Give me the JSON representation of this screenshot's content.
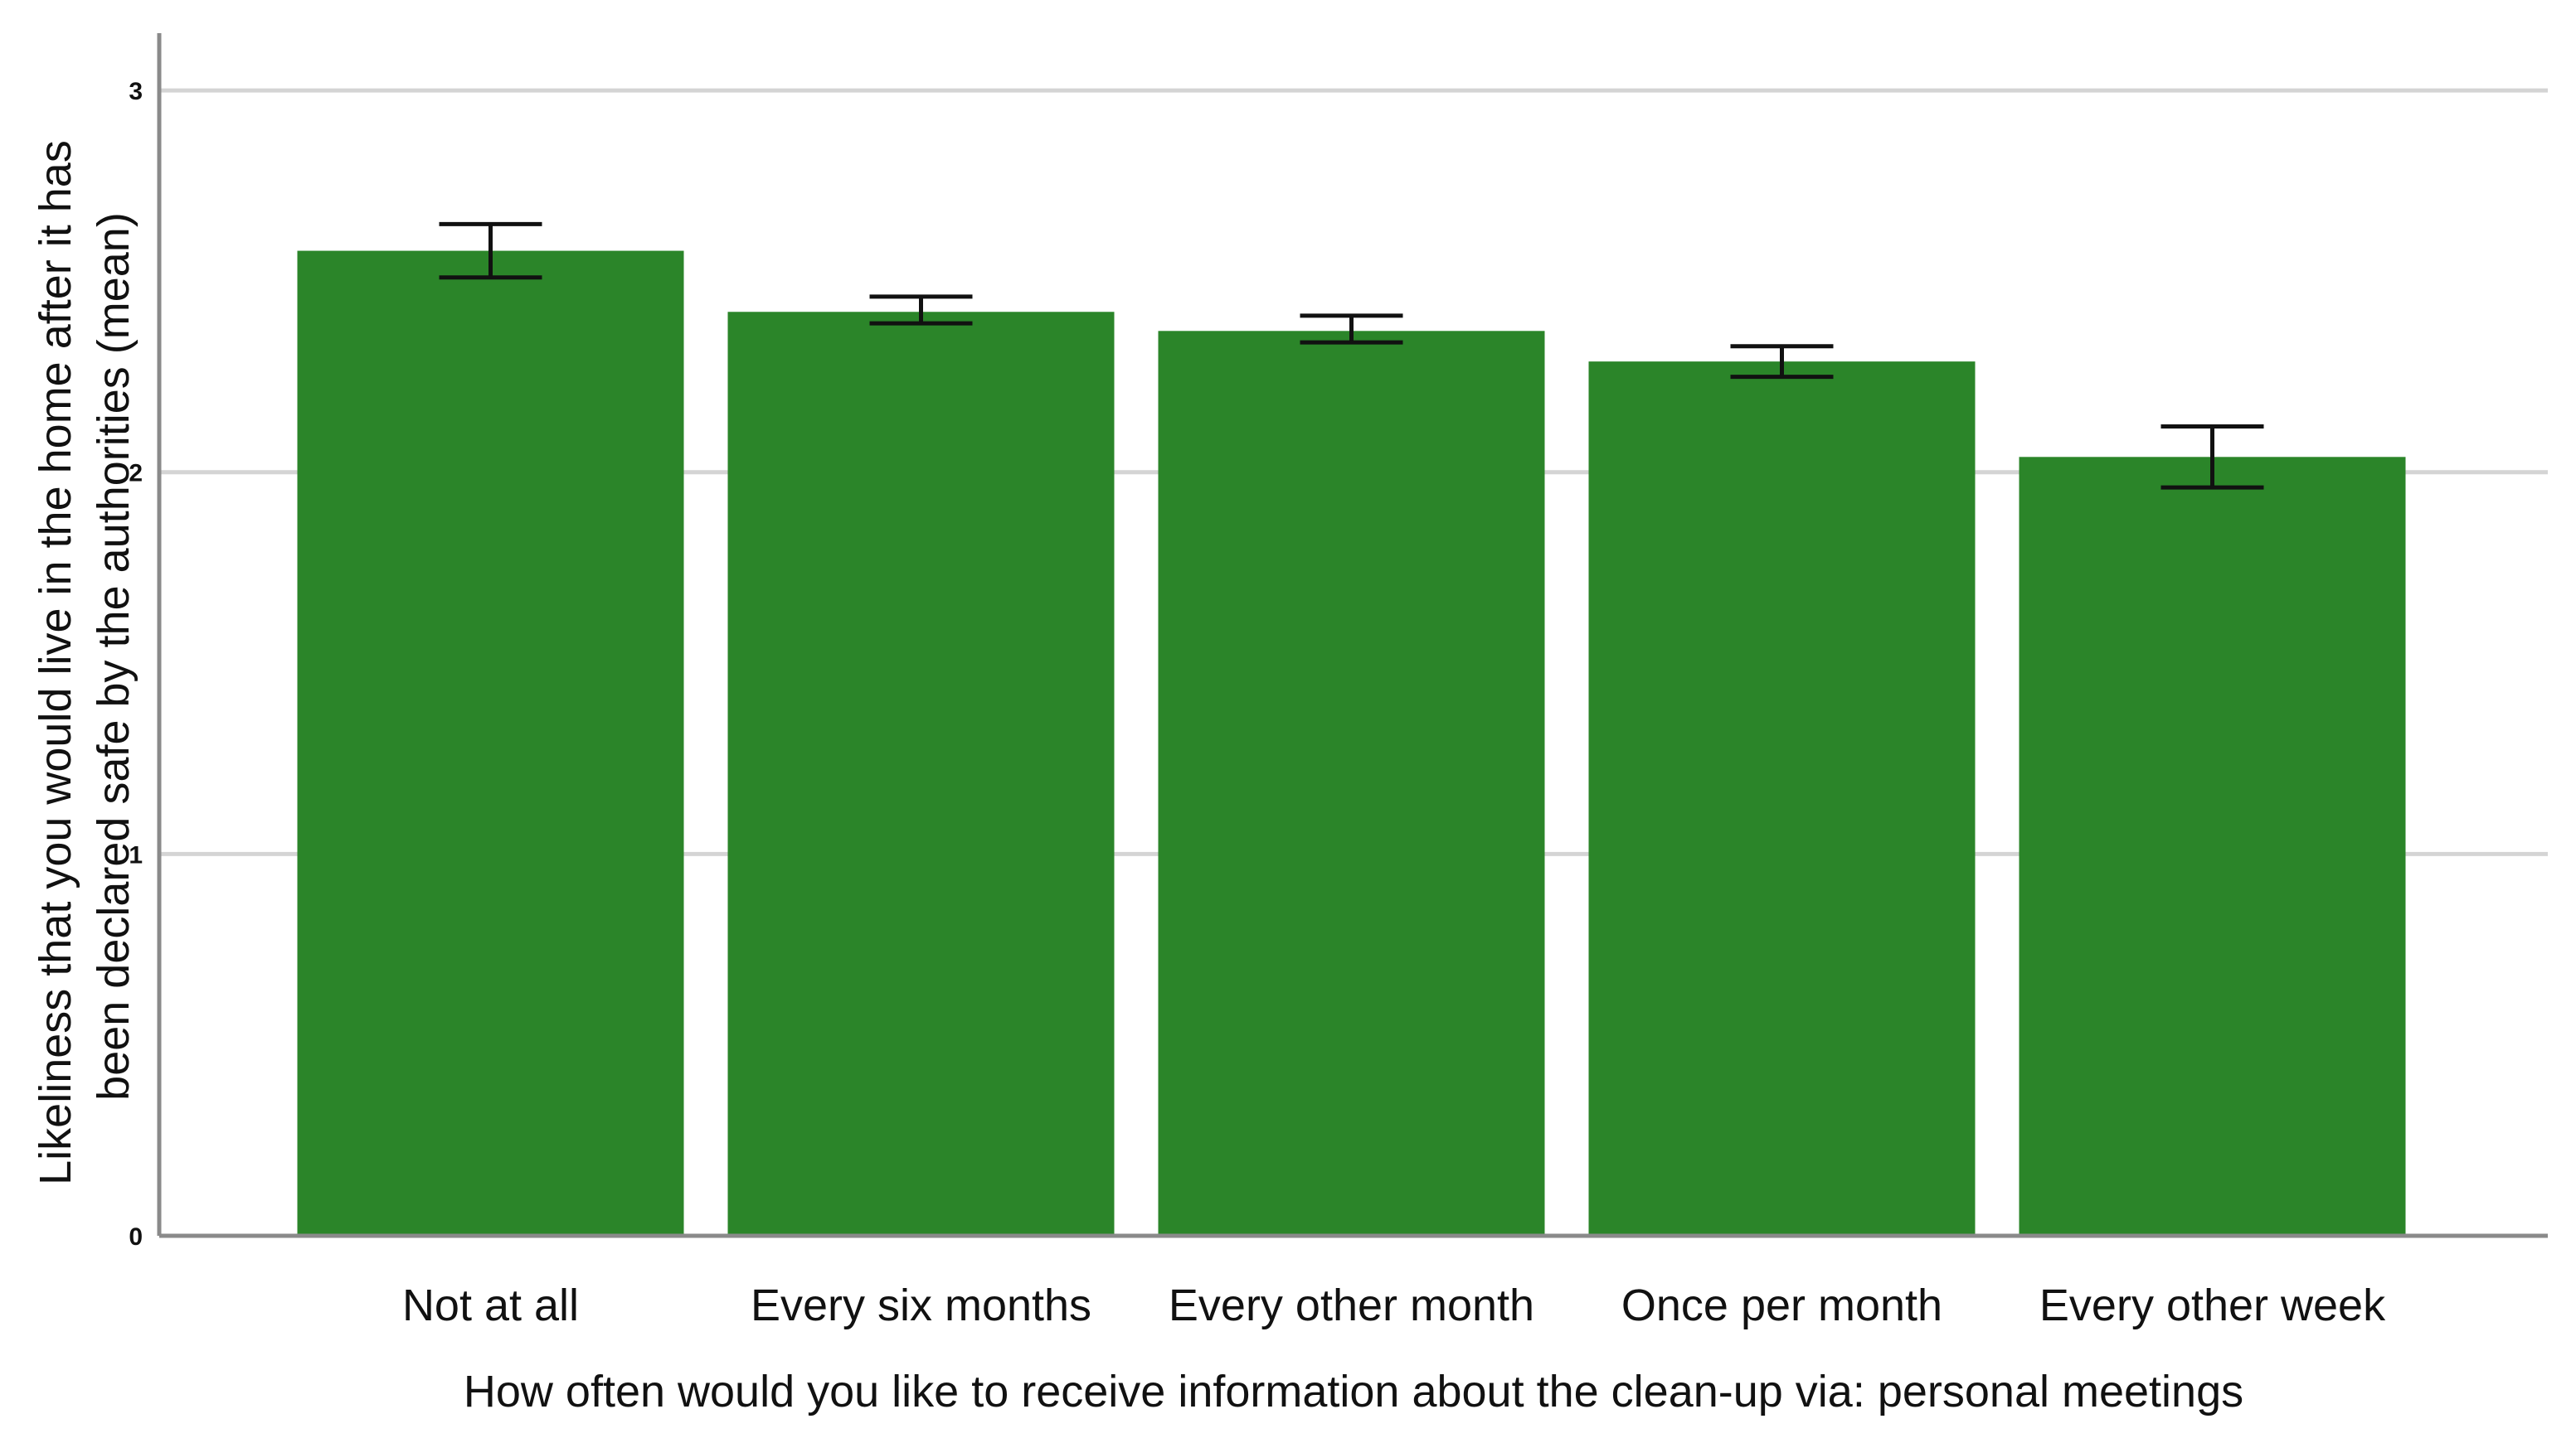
{
  "colors": {
    "bar": "#2b8529",
    "grid": "#d4d4d4",
    "axis": "#8a8a8a",
    "error_bar": "#111111",
    "background": "#ffffff"
  },
  "chart_data": {
    "type": "bar",
    "categories": [
      "Not at all",
      "Every six months",
      "Every other month",
      "Once per month",
      "Every other week"
    ],
    "values": [
      2.58,
      2.42,
      2.37,
      2.29,
      2.04
    ],
    "error_low": [
      2.51,
      2.39,
      2.34,
      2.25,
      1.96
    ],
    "error_high": [
      2.65,
      2.46,
      2.41,
      2.33,
      2.12
    ],
    "xlabel": "How often would you like to receive information about the clean-up via: personal meetings",
    "ylabel_lines": [
      "Likeliness that you would live in the home after it has",
      "been declared safe by the authorities (mean)"
    ],
    "yticks": [
      0,
      1,
      2,
      3
    ],
    "ytick_labels": [
      "0",
      "1",
      "2",
      "3"
    ],
    "ylim": [
      0,
      3.15
    ],
    "grid": true,
    "legend": "none"
  }
}
